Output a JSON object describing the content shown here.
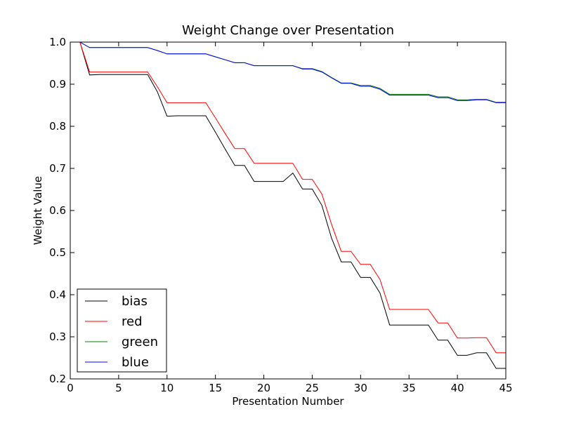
{
  "chart_data": {
    "type": "line",
    "title": "Weight Change over Presentation",
    "xlabel": "Presentation Number",
    "ylabel": "Weight Value",
    "xlim": [
      0,
      45
    ],
    "ylim": [
      0.2,
      1.0
    ],
    "xticks": [
      0,
      5,
      10,
      15,
      20,
      25,
      30,
      35,
      40,
      45
    ],
    "yticks": [
      0.2,
      0.3,
      0.4,
      0.5,
      0.6,
      0.7,
      0.8,
      0.9,
      1.0
    ],
    "grid": false,
    "legend_position": "lower-left",
    "x": [
      1,
      2,
      3,
      4,
      5,
      6,
      7,
      8,
      9,
      10,
      11,
      12,
      13,
      14,
      15,
      16,
      17,
      18,
      19,
      20,
      21,
      22,
      23,
      24,
      25,
      26,
      27,
      28,
      29,
      30,
      31,
      32,
      33,
      34,
      35,
      36,
      37,
      38,
      39,
      40,
      41,
      42,
      43,
      44,
      45
    ],
    "series": [
      {
        "name": "bias",
        "color": "#000000",
        "values": [
          1.0,
          0.922,
          0.923,
          0.923,
          0.923,
          0.923,
          0.923,
          0.923,
          0.882,
          0.824,
          0.825,
          0.825,
          0.825,
          0.825,
          0.786,
          0.746,
          0.707,
          0.707,
          0.669,
          0.669,
          0.669,
          0.669,
          0.689,
          0.651,
          0.651,
          0.612,
          0.534,
          0.478,
          0.478,
          0.441,
          0.441,
          0.404,
          0.328,
          0.328,
          0.328,
          0.328,
          0.328,
          0.292,
          0.292,
          0.256,
          0.256,
          0.262,
          0.262,
          0.225,
          0.225
        ]
      },
      {
        "name": "red",
        "color": "#ff0000",
        "values": [
          1.0,
          0.929,
          0.929,
          0.929,
          0.929,
          0.929,
          0.929,
          0.929,
          0.894,
          0.856,
          0.856,
          0.856,
          0.856,
          0.856,
          0.82,
          0.783,
          0.747,
          0.747,
          0.712,
          0.712,
          0.712,
          0.712,
          0.712,
          0.674,
          0.674,
          0.639,
          0.567,
          0.503,
          0.503,
          0.472,
          0.472,
          0.436,
          0.365,
          0.365,
          0.365,
          0.365,
          0.365,
          0.333,
          0.333,
          0.297,
          0.297,
          0.298,
          0.298,
          0.262,
          0.262
        ]
      },
      {
        "name": "green",
        "color": "#008000",
        "values": [
          1.0,
          0.987,
          0.987,
          0.987,
          0.987,
          0.987,
          0.987,
          0.987,
          0.98,
          0.972,
          0.972,
          0.972,
          0.972,
          0.972,
          0.965,
          0.958,
          0.951,
          0.951,
          0.944,
          0.944,
          0.944,
          0.944,
          0.944,
          0.937,
          0.937,
          0.93,
          0.916,
          0.903,
          0.903,
          0.897,
          0.897,
          0.89,
          0.876,
          0.876,
          0.876,
          0.876,
          0.876,
          0.87,
          0.87,
          0.863,
          0.863,
          0.864,
          0.864,
          0.857,
          0.857
        ]
      },
      {
        "name": "blue",
        "color": "#0000ff",
        "values": [
          1.0,
          0.987,
          0.987,
          0.987,
          0.987,
          0.987,
          0.987,
          0.987,
          0.98,
          0.972,
          0.972,
          0.972,
          0.972,
          0.972,
          0.965,
          0.958,
          0.951,
          0.951,
          0.944,
          0.944,
          0.944,
          0.944,
          0.944,
          0.936,
          0.936,
          0.929,
          0.915,
          0.902,
          0.902,
          0.895,
          0.895,
          0.888,
          0.874,
          0.874,
          0.874,
          0.874,
          0.874,
          0.868,
          0.868,
          0.861,
          0.861,
          0.863,
          0.863,
          0.856,
          0.856
        ]
      }
    ]
  }
}
